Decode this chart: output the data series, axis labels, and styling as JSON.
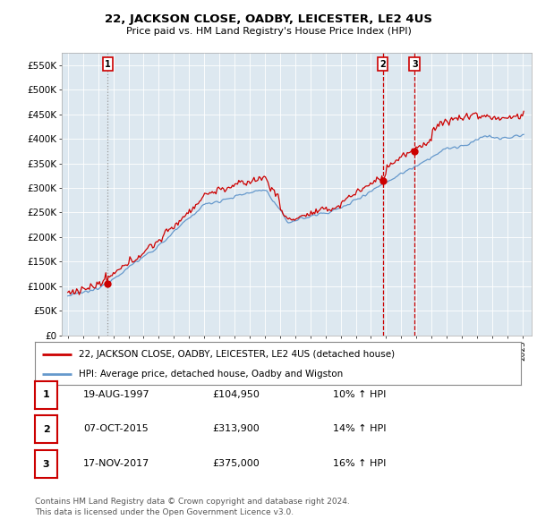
{
  "title": "22, JACKSON CLOSE, OADBY, LEICESTER, LE2 4US",
  "subtitle": "Price paid vs. HM Land Registry's House Price Index (HPI)",
  "ylabel_ticks": [
    "£0",
    "£50K",
    "£100K",
    "£150K",
    "£200K",
    "£250K",
    "£300K",
    "£350K",
    "£400K",
    "£450K",
    "£500K",
    "£550K"
  ],
  "ytick_vals": [
    0,
    50000,
    100000,
    150000,
    200000,
    250000,
    300000,
    350000,
    400000,
    450000,
    500000,
    550000
  ],
  "ylim": [
    0,
    575000
  ],
  "xlim_start": 1994.6,
  "xlim_end": 2025.6,
  "sale1_date": 1997.63,
  "sale1_price": 104950,
  "sale1_label": "1",
  "sale2_date": 2015.77,
  "sale2_price": 313900,
  "sale2_label": "2",
  "sale3_date": 2017.88,
  "sale3_price": 375000,
  "sale3_label": "3",
  "legend_line1": "22, JACKSON CLOSE, OADBY, LEICESTER, LE2 4US (detached house)",
  "legend_line2": "HPI: Average price, detached house, Oadby and Wigston",
  "table_rows": [
    {
      "num": "1",
      "date": "19-AUG-1997",
      "price": "£104,950",
      "hpi": "10% ↑ HPI"
    },
    {
      "num": "2",
      "date": "07-OCT-2015",
      "price": "£313,900",
      "hpi": "14% ↑ HPI"
    },
    {
      "num": "3",
      "date": "17-NOV-2017",
      "price": "£375,000",
      "hpi": "16% ↑ HPI"
    }
  ],
  "footer": "Contains HM Land Registry data © Crown copyright and database right 2024.\nThis data is licensed under the Open Government Licence v3.0.",
  "red_color": "#cc0000",
  "blue_color": "#6699cc",
  "chart_bg": "#dde8f0",
  "bg_color": "#ffffff",
  "grid_color": "#ffffff"
}
